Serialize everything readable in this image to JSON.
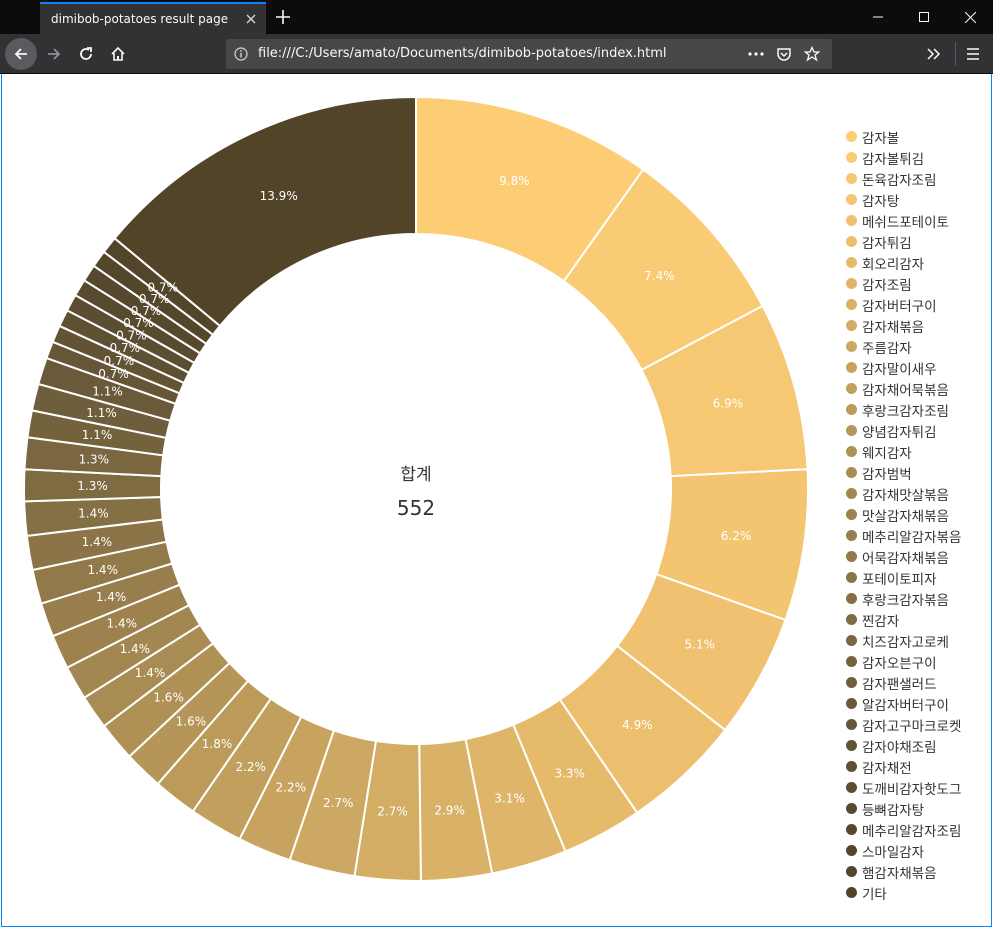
{
  "browser": {
    "tab_title": "dimibob-potatoes result page",
    "url": "file:///C:/Users/amato/Documents/dimibob-potatoes/index.html"
  },
  "chart_data": {
    "type": "pie",
    "donut": true,
    "center_label": "합계",
    "total": 552,
    "legend_position": "right",
    "slices": [
      {
        "label": "감자볼",
        "percent": 9.8,
        "color": "#FDCD76"
      },
      {
        "label": "감자볼튀김",
        "percent": 7.4,
        "color": "#FACB75"
      },
      {
        "label": "돈육감자조림",
        "percent": 6.9,
        "color": "#F6C873"
      },
      {
        "label": "감자탕",
        "percent": 6.2,
        "color": "#F3C571"
      },
      {
        "label": "메쉬드포테이토",
        "percent": 5.1,
        "color": "#EFC170"
      },
      {
        "label": "감자튀김",
        "percent": 4.9,
        "color": "#EBBF6E"
      },
      {
        "label": "회오리감자",
        "percent": 3.3,
        "color": "#E5BA6B"
      },
      {
        "label": "감자조림",
        "percent": 3.1,
        "color": "#DFB569"
      },
      {
        "label": "감자버터구이",
        "percent": 2.9,
        "color": "#D9B167"
      },
      {
        "label": "감자채볶음",
        "percent": 2.7,
        "color": "#D3AD64"
      },
      {
        "label": "주름감자",
        "percent": 2.7,
        "color": "#CDA862"
      },
      {
        "label": "감자말이새우",
        "percent": 2.2,
        "color": "#C7A35F"
      },
      {
        "label": "감자채어묵볶음",
        "percent": 2.2,
        "color": "#C19F5D"
      },
      {
        "label": "후랑크감자조림",
        "percent": 1.8,
        "color": "#BB9A5A"
      },
      {
        "label": "양념감자튀김",
        "percent": 1.6,
        "color": "#B59658"
      },
      {
        "label": "웨지감자",
        "percent": 1.6,
        "color": "#AF9156"
      },
      {
        "label": "감자범벅",
        "percent": 1.4,
        "color": "#A98C53"
      },
      {
        "label": "감자채맛살볶음",
        "percent": 1.4,
        "color": "#A38751"
      },
      {
        "label": "맛살감자채볶음",
        "percent": 1.4,
        "color": "#9D824E"
      },
      {
        "label": "메추리알감자볶음",
        "percent": 1.4,
        "color": "#977E4C"
      },
      {
        "label": "어묵감자채볶음",
        "percent": 1.4,
        "color": "#917949"
      },
      {
        "label": "포테이토피자",
        "percent": 1.4,
        "color": "#8B7447"
      },
      {
        "label": "후랑크감자볶음",
        "percent": 1.4,
        "color": "#856F44"
      },
      {
        "label": "찐감자",
        "percent": 1.3,
        "color": "#7F6B42"
      },
      {
        "label": "치즈감자고로케",
        "percent": 1.3,
        "color": "#7A6640"
      },
      {
        "label": "감자오븐구이",
        "percent": 1.1,
        "color": "#74623D"
      },
      {
        "label": "감자팬샐러드",
        "percent": 1.1,
        "color": "#6F5E3B"
      },
      {
        "label": "알감자버터구이",
        "percent": 1.1,
        "color": "#6A5A39"
      },
      {
        "label": "감자고구마크로켓",
        "percent": 0.7,
        "color": "#665637"
      },
      {
        "label": "감자야채조림",
        "percent": 0.7,
        "color": "#625335"
      },
      {
        "label": "감자채전",
        "percent": 0.7,
        "color": "#5E5033"
      },
      {
        "label": "도깨비감자핫도그",
        "percent": 0.7,
        "color": "#5B4D31"
      },
      {
        "label": "등뼈감자탕",
        "percent": 0.7,
        "color": "#584A2F"
      },
      {
        "label": "메추리알감자조림",
        "percent": 0.7,
        "color": "#56482D"
      },
      {
        "label": "스마일감자",
        "percent": 0.7,
        "color": "#54462B"
      },
      {
        "label": "햄감자채볶음",
        "percent": 0.7,
        "color": "#534529"
      },
      {
        "label": "기타",
        "percent": 13.9,
        "color": "#524428"
      }
    ]
  }
}
